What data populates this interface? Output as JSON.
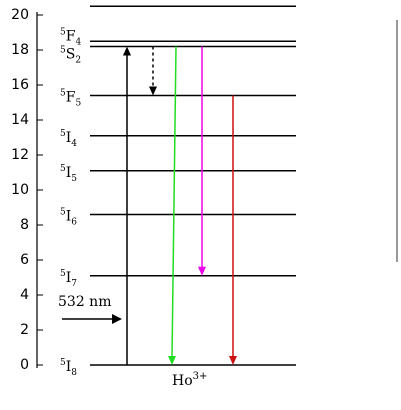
{
  "chart_data": {
    "type": "energy-level",
    "ylim": [
      0,
      20.5
    ],
    "yticks": [
      0,
      2,
      4,
      6,
      8,
      10,
      12,
      14,
      16,
      18,
      20
    ],
    "levels": [
      {
        "mult": "5",
        "term": "I",
        "j": "8",
        "value": 0
      },
      {
        "mult": "5",
        "term": "I",
        "j": "7",
        "value": 5.1
      },
      {
        "mult": "5",
        "term": "I",
        "j": "6",
        "value": 8.6
      },
      {
        "mult": "5",
        "term": "I",
        "j": "5",
        "value": 11.1
      },
      {
        "mult": "5",
        "term": "I",
        "j": "4",
        "value": 13.1
      },
      {
        "mult": "5",
        "term": "F",
        "j": "5",
        "value": 15.4
      },
      {
        "mult": "5",
        "term": "S",
        "j": "2",
        "value": 18.2
      },
      {
        "mult": "5",
        "term": "F",
        "j": "4",
        "value": 18.5
      },
      {
        "mult": null,
        "term": null,
        "j": null,
        "value": 20.5
      }
    ],
    "transitions": [
      {
        "from": 0,
        "to": 18.2,
        "color": "#000000",
        "style": "solid"
      },
      {
        "from": 18.2,
        "to": 15.4,
        "color": "#000000",
        "style": "dotted"
      },
      {
        "from": 18.2,
        "to": 0,
        "color": "#22dd22",
        "style": "solid"
      },
      {
        "from": 18.2,
        "to": 5.1,
        "color": "#ee00ee",
        "style": "solid"
      },
      {
        "from": 15.4,
        "to": 0,
        "color": "#cc1111",
        "style": "solid"
      }
    ],
    "excitation_label": "532 nm",
    "ion": {
      "symbol": "Ho",
      "charge": "3+"
    }
  }
}
